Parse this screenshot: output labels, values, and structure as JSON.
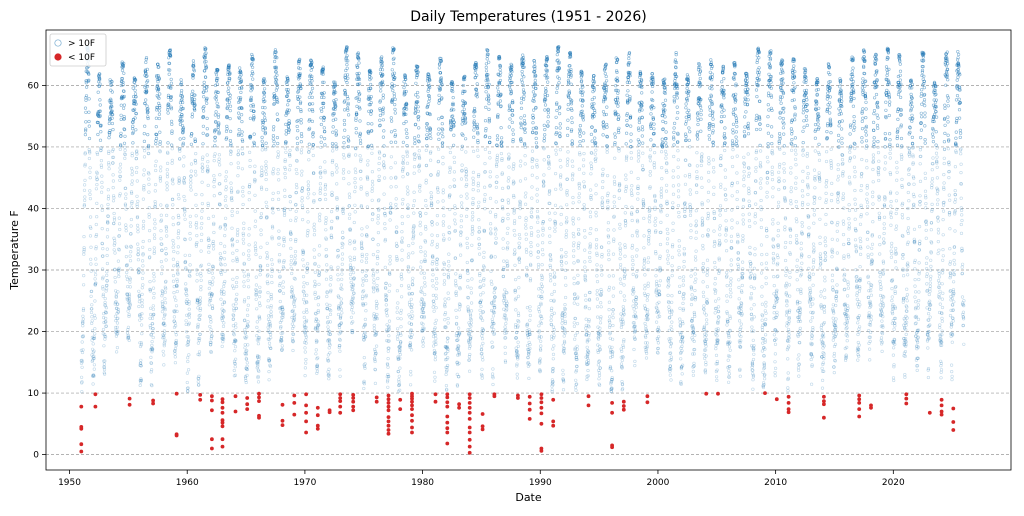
{
  "chart_data": {
    "type": "scatter",
    "title": "Daily Temperatures (1951 - 2026)",
    "xlabel": "Date",
    "ylabel": "Temperature F",
    "xlim": [
      1948,
      2030
    ],
    "ylim": [
      -2.5,
      69
    ],
    "x_ticks": [
      1950,
      1960,
      1970,
      1980,
      1990,
      2000,
      2010,
      2020
    ],
    "y_ticks": [
      0,
      10,
      20,
      30,
      40,
      50,
      60
    ],
    "grid": "horizontal-dashed",
    "legend_position": "top-left",
    "series": [
      {
        "name": "> 10F",
        "color": "#1f77b4",
        "marker": "hollow-circle",
        "description_range": {
          "x": [
            1951,
            2026
          ],
          "y": [
            10,
            66
          ]
        }
      },
      {
        "name": "< 10F",
        "color": "#d62728",
        "marker": "filled-circle",
        "points": [
          [
            1951.0,
            7.8
          ],
          [
            1951.0,
            4.5
          ],
          [
            1951.0,
            4.2
          ],
          [
            1951.0,
            1.7
          ],
          [
            1951.0,
            0.5
          ],
          [
            1952.2,
            7.8
          ],
          [
            1952.2,
            9.8
          ],
          [
            1955.1,
            9.1
          ],
          [
            1955.1,
            8.1
          ],
          [
            1957.1,
            8.8
          ],
          [
            1957.1,
            8.3
          ],
          [
            1959.1,
            9.9
          ],
          [
            1959.1,
            3.3
          ],
          [
            1959.1,
            3.1
          ],
          [
            1961.1,
            9.7
          ],
          [
            1961.1,
            8.9
          ],
          [
            1962.1,
            9.5
          ],
          [
            1962.1,
            8.8
          ],
          [
            1962.1,
            7.2
          ],
          [
            1962.1,
            2.5
          ],
          [
            1962.1,
            1.0
          ],
          [
            1963.0,
            9.0
          ],
          [
            1963.0,
            8.5
          ],
          [
            1963.0,
            7.6
          ],
          [
            1963.0,
            6.8
          ],
          [
            1963.0,
            5.6
          ],
          [
            1963.0,
            5.2
          ],
          [
            1963.0,
            4.6
          ],
          [
            1963.0,
            2.5
          ],
          [
            1963.0,
            1.3
          ],
          [
            1964.1,
            9.5
          ],
          [
            1964.1,
            7.0
          ],
          [
            1965.1,
            9.2
          ],
          [
            1965.1,
            8.2
          ],
          [
            1965.1,
            7.4
          ],
          [
            1966.1,
            9.9
          ],
          [
            1966.1,
            9.3
          ],
          [
            1966.1,
            8.7
          ],
          [
            1966.1,
            6.3
          ],
          [
            1966.1,
            6.0
          ],
          [
            1968.1,
            8.1
          ],
          [
            1968.1,
            5.5
          ],
          [
            1968.1,
            4.8
          ],
          [
            1969.1,
            9.6
          ],
          [
            1969.1,
            8.4
          ],
          [
            1969.1,
            6.5
          ],
          [
            1970.1,
            9.8
          ],
          [
            1970.1,
            8.0
          ],
          [
            1970.1,
            6.8
          ],
          [
            1970.1,
            5.4
          ],
          [
            1970.1,
            3.6
          ],
          [
            1971.1,
            7.6
          ],
          [
            1971.1,
            6.4
          ],
          [
            1971.1,
            4.7
          ],
          [
            1971.1,
            4.2
          ],
          [
            1972.1,
            7.2
          ],
          [
            1972.1,
            6.9
          ],
          [
            1973.0,
            9.8
          ],
          [
            1973.0,
            9.2
          ],
          [
            1973.0,
            8.7
          ],
          [
            1973.0,
            7.8
          ],
          [
            1973.0,
            6.8
          ],
          [
            1974.1,
            9.7
          ],
          [
            1974.1,
            9.2
          ],
          [
            1974.1,
            8.6
          ],
          [
            1974.1,
            7.8
          ],
          [
            1974.1,
            7.2
          ],
          [
            1976.1,
            9.3
          ],
          [
            1976.1,
            8.6
          ],
          [
            1977.1,
            9.6
          ],
          [
            1977.1,
            9.0
          ],
          [
            1977.1,
            8.4
          ],
          [
            1977.1,
            7.8
          ],
          [
            1977.1,
            7.2
          ],
          [
            1977.1,
            6.1
          ],
          [
            1977.1,
            5.4
          ],
          [
            1977.1,
            4.7
          ],
          [
            1977.1,
            4.0
          ],
          [
            1977.1,
            3.4
          ],
          [
            1978.1,
            8.9
          ],
          [
            1978.1,
            7.4
          ],
          [
            1979.1,
            9.9
          ],
          [
            1979.1,
            9.5
          ],
          [
            1979.1,
            9.1
          ],
          [
            1979.1,
            8.6
          ],
          [
            1979.1,
            8.0
          ],
          [
            1979.1,
            7.4
          ],
          [
            1979.1,
            6.4
          ],
          [
            1979.1,
            5.5
          ],
          [
            1979.1,
            4.4
          ],
          [
            1979.1,
            3.6
          ],
          [
            1981.1,
            9.8
          ],
          [
            1981.1,
            8.6
          ],
          [
            1982.1,
            9.8
          ],
          [
            1982.1,
            9.3
          ],
          [
            1982.1,
            8.5
          ],
          [
            1982.1,
            7.8
          ],
          [
            1982.1,
            6.2
          ],
          [
            1982.1,
            5.2
          ],
          [
            1982.1,
            4.3
          ],
          [
            1982.1,
            3.6
          ],
          [
            1982.1,
            1.8
          ],
          [
            1983.1,
            8.2
          ],
          [
            1983.1,
            7.6
          ],
          [
            1984.0,
            9.8
          ],
          [
            1984.0,
            9.2
          ],
          [
            1984.0,
            8.4
          ],
          [
            1984.0,
            7.6
          ],
          [
            1984.0,
            6.8
          ],
          [
            1984.0,
            5.8
          ],
          [
            1984.0,
            4.4
          ],
          [
            1984.0,
            3.6
          ],
          [
            1984.0,
            2.4
          ],
          [
            1984.0,
            1.3
          ],
          [
            1984.0,
            0.3
          ],
          [
            1985.1,
            6.6
          ],
          [
            1985.1,
            4.6
          ],
          [
            1985.1,
            4.1
          ],
          [
            1986.1,
            9.8
          ],
          [
            1986.1,
            9.5
          ],
          [
            1988.1,
            9.6
          ],
          [
            1988.1,
            9.2
          ],
          [
            1989.1,
            9.4
          ],
          [
            1989.1,
            8.3
          ],
          [
            1989.1,
            7.3
          ],
          [
            1989.1,
            5.8
          ],
          [
            1990.1,
            9.8
          ],
          [
            1990.1,
            9.2
          ],
          [
            1990.1,
            8.5
          ],
          [
            1990.1,
            7.6
          ],
          [
            1990.1,
            6.7
          ],
          [
            1990.1,
            5.0
          ],
          [
            1990.1,
            1.0
          ],
          [
            1990.1,
            0.6
          ],
          [
            1991.1,
            8.9
          ],
          [
            1991.1,
            5.4
          ],
          [
            1991.1,
            4.7
          ],
          [
            1994.1,
            9.5
          ],
          [
            1994.1,
            8.0
          ],
          [
            1996.1,
            8.4
          ],
          [
            1996.1,
            6.8
          ],
          [
            1996.1,
            1.5
          ],
          [
            1996.1,
            1.2
          ],
          [
            1997.1,
            8.6
          ],
          [
            1997.1,
            7.9
          ],
          [
            1997.1,
            7.3
          ],
          [
            1999.1,
            9.5
          ],
          [
            1999.1,
            8.5
          ],
          [
            2004.1,
            9.9
          ],
          [
            2005.1,
            9.9
          ],
          [
            2009.1,
            10.0
          ],
          [
            2010.1,
            9.0
          ],
          [
            2011.1,
            9.4
          ],
          [
            2011.1,
            8.4
          ],
          [
            2011.1,
            7.4
          ],
          [
            2011.1,
            6.9
          ],
          [
            2014.1,
            9.4
          ],
          [
            2014.1,
            8.7
          ],
          [
            2014.1,
            8.2
          ],
          [
            2014.1,
            6.0
          ],
          [
            2017.1,
            9.6
          ],
          [
            2017.1,
            9.0
          ],
          [
            2017.1,
            8.4
          ],
          [
            2017.1,
            7.4
          ],
          [
            2017.1,
            6.2
          ],
          [
            2018.1,
            8.0
          ],
          [
            2018.1,
            7.6
          ],
          [
            2021.1,
            9.8
          ],
          [
            2021.1,
            9.1
          ],
          [
            2021.1,
            8.3
          ],
          [
            2023.1,
            6.8
          ],
          [
            2024.1,
            8.9
          ],
          [
            2024.1,
            8.0
          ],
          [
            2024.1,
            7.0
          ],
          [
            2024.1,
            6.5
          ],
          [
            2025.1,
            7.5
          ],
          [
            2025.1,
            5.3
          ],
          [
            2025.1,
            4.0
          ]
        ]
      }
    ]
  }
}
